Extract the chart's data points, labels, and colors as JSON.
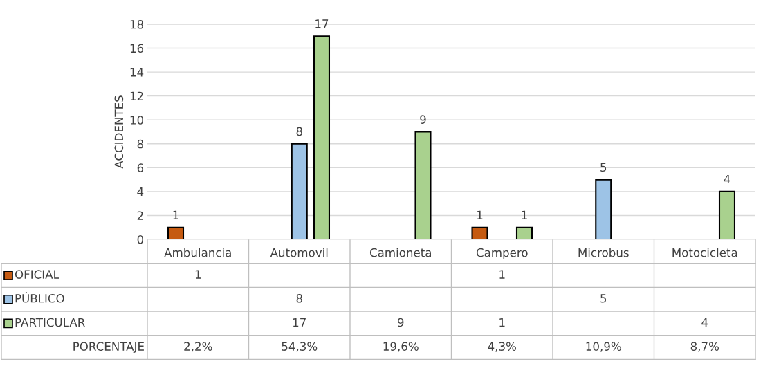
{
  "chart_data": {
    "type": "bar",
    "ylabel": "ACCIDENTES",
    "categories": [
      "Ambulancia",
      "Automovil",
      "Camioneta",
      "Campero",
      "Microbus",
      "Motocicleta"
    ],
    "series": [
      {
        "name": "OFICIAL",
        "color": "#c55a11",
        "values": [
          1,
          null,
          null,
          1,
          null,
          null
        ]
      },
      {
        "name": "PÚBLICO",
        "color": "#9dc3e6",
        "values": [
          null,
          8,
          null,
          null,
          5,
          null
        ]
      },
      {
        "name": "PARTICULAR",
        "color": "#a9d18e",
        "values": [
          null,
          17,
          9,
          1,
          null,
          4
        ]
      }
    ],
    "annotations": [
      "PORCENTAJE",
      "2,2%",
      "54,3%",
      "19,6%",
      "4,3%",
      "10,9%",
      "8,7%",
      "1",
      "8",
      "17",
      "9",
      "1",
      "1",
      "5",
      "4"
    ],
    "ylim": [
      0,
      18
    ],
    "yticks": [
      0,
      2,
      4,
      6,
      8,
      10,
      12,
      14,
      16,
      18
    ],
    "grid": "y",
    "data_labels": true,
    "legend": "bottom"
  }
}
